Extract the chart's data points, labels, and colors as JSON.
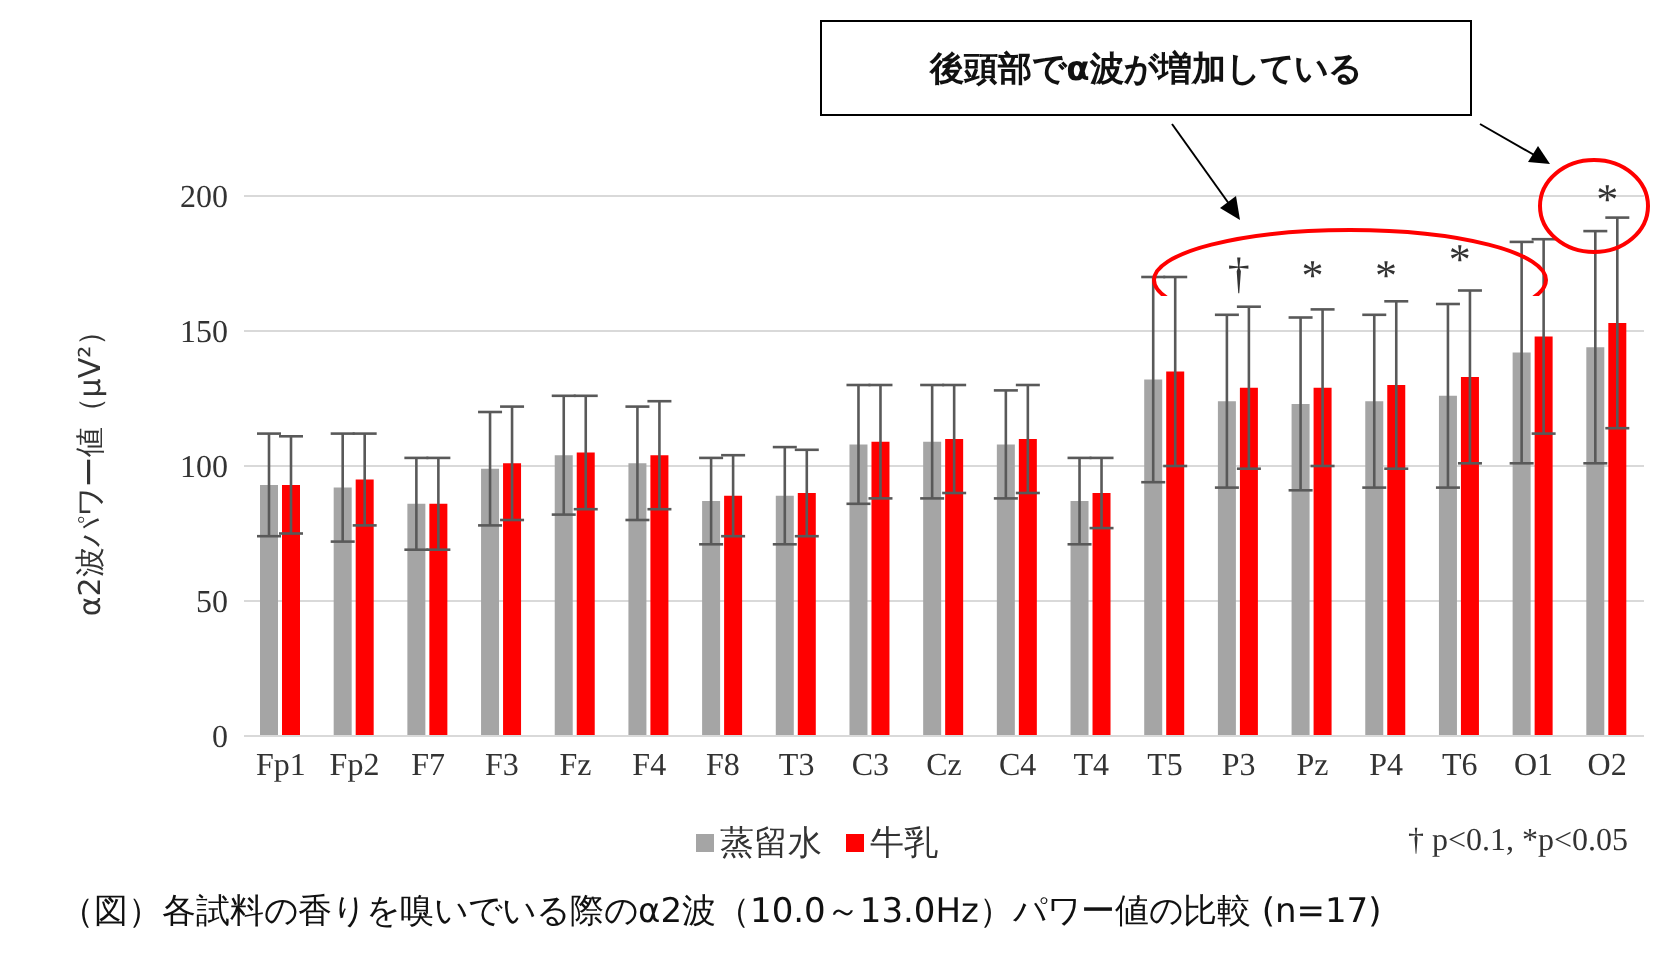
{
  "chart_data": {
    "type": "bar",
    "ylabel": "α2波パワー値（μV²）",
    "categories": [
      "Fp1",
      "Fp2",
      "F7",
      "F3",
      "Fz",
      "F4",
      "F8",
      "T3",
      "C3",
      "Cz",
      "C4",
      "T4",
      "T5",
      "P3",
      "Pz",
      "P4",
      "T6",
      "O1",
      "O2"
    ],
    "series": [
      {
        "name": "蒸留水",
        "color": "#a5a5a5",
        "values": [
          93,
          92,
          86,
          99,
          104,
          101,
          87,
          89,
          108,
          109,
          108,
          87,
          132,
          124,
          123,
          124,
          126,
          142,
          144
        ],
        "errors": [
          19,
          20,
          17,
          21,
          22,
          21,
          16,
          18,
          22,
          21,
          20,
          16,
          38,
          32,
          32,
          32,
          34,
          41,
          43
        ]
      },
      {
        "name": "牛乳",
        "color": "#ff0000",
        "values": [
          93,
          95,
          86,
          101,
          105,
          104,
          89,
          90,
          109,
          110,
          110,
          90,
          135,
          129,
          129,
          130,
          133,
          148,
          153
        ],
        "errors": [
          18,
          17,
          17,
          21,
          21,
          20,
          15,
          16,
          21,
          20,
          20,
          13,
          35,
          30,
          29,
          31,
          32,
          36,
          39
        ]
      }
    ],
    "ylim": [
      0,
      200
    ],
    "yticks": [
      0,
      50,
      100,
      150,
      200
    ],
    "grid": "y",
    "legend": "bottom",
    "annotations": [
      "後頭部でα波が増加している",
      "† p<0.1, *p<0.05",
      "（図）各試料の香りを嗅いでいる際のα2波（10.0～13.0Hz）パワー値の比較 (n=17)",
      "†",
      "*",
      "*",
      "*",
      "*"
    ]
  }
}
